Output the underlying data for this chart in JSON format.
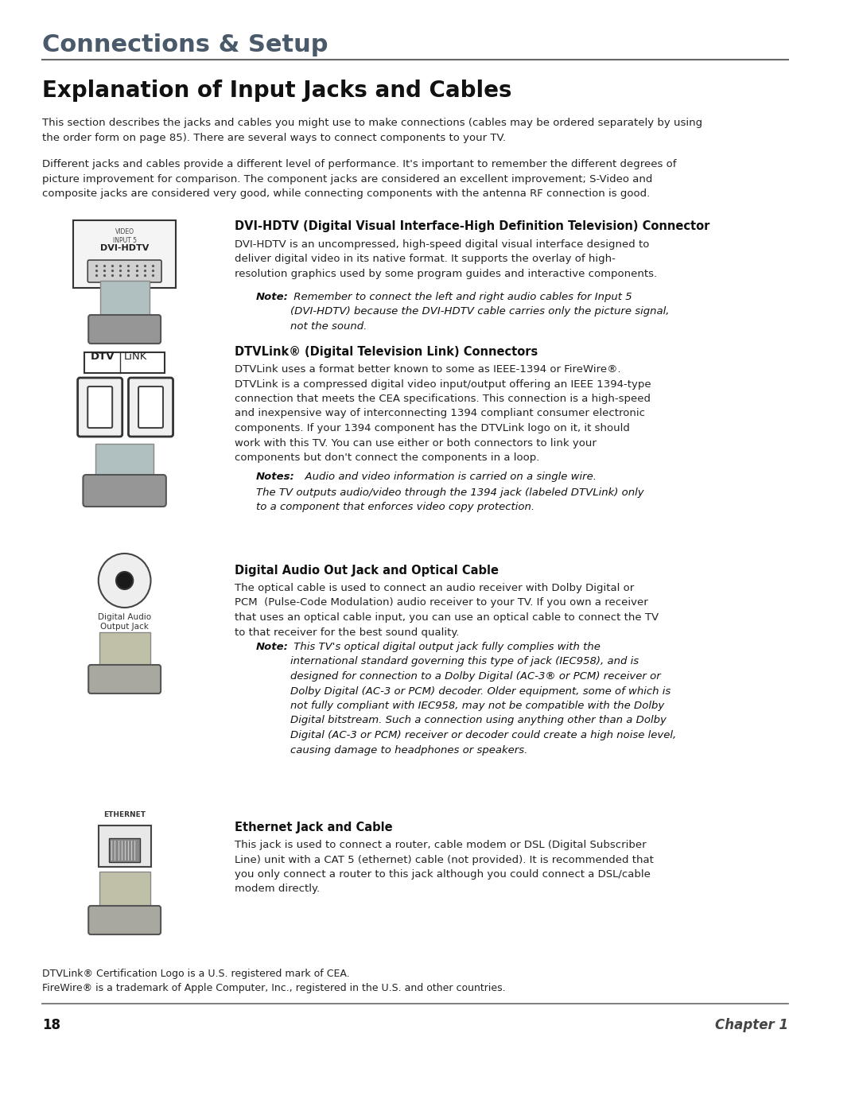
{
  "bg_color": "#ffffff",
  "header_title": "Connections & Setup",
  "header_color": "#4a5a6a",
  "header_line_color": "#666666",
  "page_title": "Explanation of Input Jacks and Cables",
  "intro_para1": "This section describes the jacks and cables you might use to make connections (cables may be ordered separately by using\nthe order form on page 85). There are several ways to connect components to your TV.",
  "intro_para2": "Different jacks and cables provide a different level of performance. It's important to remember the different degrees of\npicture improvement for comparison. The component jacks are considered an excellent improvement; S-Video and\ncomposite jacks are considered very good, while connecting components with the antenna RF connection is good.",
  "section1_title": "DVI-HDTV (Digital Visual Interface-High Definition Television) Connector",
  "section1_body": "DVI-HDTV is an uncompressed, high-speed digital visual interface designed to\ndeliver digital video in its native format. It supports the overlay of high-\nresolution graphics used by some program guides and interactive components.",
  "section1_note_bold": "Note:",
  "section1_note": " Remember to connect the left and right audio cables for Input 5\n(DVI-HDTV) because the DVI-HDTV cable carries only the picture signal,\nnot the sound.",
  "section2_title": "DTVLink® (Digital Television Link) Connectors",
  "section2_body": "DTVLink uses a format better known to some as IEEE-1394 or FireWire®.\nDTVLink is a compressed digital video input/output offering an IEEE 1394-type\nconnection that meets the CEA specifications. This connection is a high-speed\nand inexpensive way of interconnecting 1394 compliant consumer electronic\ncomponents. If your 1394 component has the DTVLink logo on it, it should\nwork with this TV. You can use either or both connectors to link your\ncomponents but don't connect the components in a loop.",
  "section2_note1_bold": "Notes:",
  "section2_note1": "  Audio and video information is carried on a single wire.",
  "section2_note2": "The TV outputs audio/video through the 1394 jack (labeled DTVLink) only\nto a component that enforces video copy protection.",
  "section3_title": "Digital Audio Out Jack and Optical Cable",
  "section3_body": "The optical cable is used to connect an audio receiver with Dolby Digital or\nPCM  (Pulse-Code Modulation) audio receiver to your TV. If you own a receiver\nthat uses an optical cable input, you can use an optical cable to connect the TV\nto that receiver for the best sound quality.",
  "section3_note_bold": "Note:",
  "section3_note": " This TV's optical digital output jack fully complies with the\ninternational standard governing this type of jack (IEC958), and is\ndesigned for connection to a Dolby Digital (AC-3® or PCM) receiver or\nDolby Digital (AC-3 or PCM) decoder. Older equipment, some of which is\nnot fully compliant with IEC958, may not be compatible with the Dolby\nDigital bitstream. Such a connection using anything other than a Dolby\nDigital (AC-3 or PCM) receiver or decoder could create a high noise level,\ncausing damage to headphones or speakers.",
  "section4_title": "Ethernet Jack and Cable",
  "section4_body": "This jack is used to connect a router, cable modem or DSL (Digital Subscriber\nLine) unit with a CAT 5 (ethernet) cable (not provided). It is recommended that\nyou only connect a router to this jack although you could connect a DSL/cable\nmodem directly.",
  "footer_line1": "DTVLink® Certification Logo is a U.S. registered mark of CEA.",
  "footer_line2": "FireWire® is a trademark of Apple Computer, Inc., registered in the U.S. and other countries.",
  "page_number": "18",
  "chapter": "Chapter 1",
  "text_color": "#222222",
  "note_color": "#333333"
}
